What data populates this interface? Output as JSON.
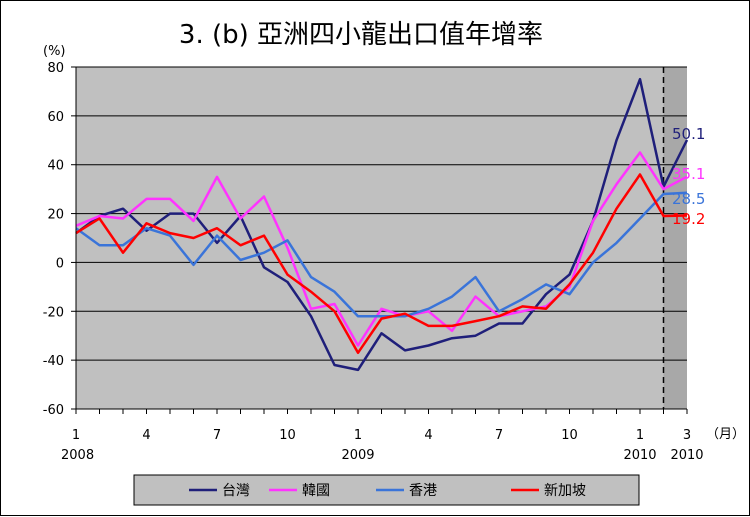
{
  "chart_data": {
    "type": "line",
    "title": "3. (b)  亞洲四小龍出口值年增率",
    "ylabel": "(%)",
    "xunit": "（月）",
    "ylim": [
      -60,
      80
    ],
    "yticks": [
      -60,
      -40,
      -20,
      0,
      20,
      40,
      60,
      80
    ],
    "x_months": [
      "2008-01",
      "2008-02",
      "2008-03",
      "2008-04",
      "2008-05",
      "2008-06",
      "2008-07",
      "2008-08",
      "2008-09",
      "2008-10",
      "2008-11",
      "2008-12",
      "2009-01",
      "2009-02",
      "2009-03",
      "2009-04",
      "2009-05",
      "2009-06",
      "2009-07",
      "2009-08",
      "2009-09",
      "2009-10",
      "2009-11",
      "2009-12",
      "2010-01",
      "2010-02",
      "2010-03"
    ],
    "xtick_labels": [
      {
        "month": "2008-01",
        "label": "1",
        "year": "2008"
      },
      {
        "month": "2008-04",
        "label": "4",
        "year": ""
      },
      {
        "month": "2008-07",
        "label": "7",
        "year": ""
      },
      {
        "month": "2008-10",
        "label": "10",
        "year": ""
      },
      {
        "month": "2009-01",
        "label": "1",
        "year": "2009"
      },
      {
        "month": "2009-04",
        "label": "4",
        "year": ""
      },
      {
        "month": "2009-07",
        "label": "7",
        "year": ""
      },
      {
        "month": "2009-10",
        "label": "10",
        "year": ""
      },
      {
        "month": "2010-01",
        "label": "1",
        "year": "2010"
      },
      {
        "month": "2010-03",
        "label": "3",
        "year": "2010"
      }
    ],
    "grid": true,
    "background": "#c0c0c0",
    "dashed_divider_after": "2010-02",
    "shaded_from": "2010-02",
    "series": [
      {
        "name": "台灣",
        "color": "#1f1f7a",
        "values": [
          12,
          19,
          22,
          13,
          20,
          20,
          8,
          19,
          -2,
          -8,
          -22,
          -42,
          -44,
          -29,
          -36,
          -34,
          -31,
          -30,
          -25,
          -25,
          -13,
          -5,
          17,
          50,
          75,
          31,
          null
        ],
        "end_value": 50.1,
        "end_label": "50.1"
      },
      {
        "name": "韓國",
        "color": "#ff33ff",
        "values": [
          15,
          19,
          18,
          26,
          26,
          17,
          35,
          18,
          27,
          6,
          -19,
          -17,
          -34,
          -19,
          -22,
          -20,
          -28,
          -14,
          -22,
          -20,
          -18,
          -10,
          17,
          32,
          45,
          30,
          null
        ],
        "end_value": 35.1,
        "end_label": "35.1"
      },
      {
        "name": "香港",
        "color": "#3a74d9",
        "values": [
          14,
          7,
          7,
          14,
          11,
          -1,
          11,
          1,
          4,
          9,
          -6,
          -12,
          -22,
          -22,
          -22,
          -19,
          -14,
          -6,
          -20,
          -15,
          -9,
          -13,
          0,
          8,
          18,
          28,
          null
        ],
        "end_value": 28.5,
        "end_label": "28.5"
      },
      {
        "name": "新加坡",
        "color": "#ff0000",
        "values": [
          12,
          18,
          4,
          16,
          12,
          10,
          14,
          7,
          11,
          -5,
          -12,
          -20,
          -37,
          -23,
          -21,
          -26,
          -26,
          -24,
          -22,
          -18,
          -19,
          -9,
          4,
          22,
          36,
          19,
          null
        ],
        "end_value": 19.2,
        "end_label": "19.2"
      }
    ],
    "legend_position": "bottom"
  }
}
